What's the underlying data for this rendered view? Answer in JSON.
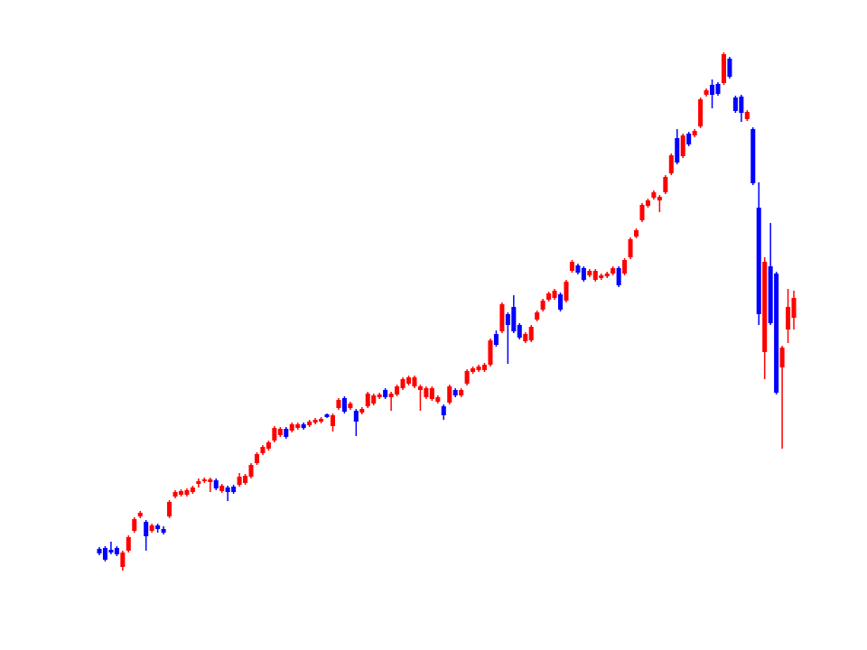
{
  "chart_data": {
    "type": "candlestick",
    "up_color": "#ff0000",
    "down_color": "#0000ff",
    "ylim": [
      0,
      720
    ],
    "candles": [
      [
        112,
        114,
        105,
        107
      ],
      [
        113,
        115,
        98,
        100
      ],
      [
        111,
        120,
        106,
        108
      ],
      [
        113,
        115,
        104,
        106
      ],
      [
        92,
        110,
        88,
        108
      ],
      [
        110,
        127,
        108,
        125
      ],
      [
        132,
        147,
        130,
        145
      ],
      [
        148,
        154,
        146,
        152
      ],
      [
        142,
        144,
        110,
        126
      ],
      [
        132,
        140,
        130,
        138
      ],
      [
        138,
        140,
        130,
        134
      ],
      [
        134,
        137,
        128,
        130
      ],
      [
        148,
        166,
        146,
        164
      ],
      [
        170,
        177,
        168,
        175
      ],
      [
        172,
        178,
        170,
        176
      ],
      [
        172,
        179,
        170,
        177
      ],
      [
        175,
        182,
        173,
        180
      ],
      [
        184,
        190,
        180,
        187
      ],
      [
        187,
        191,
        185,
        189
      ],
      [
        186,
        191,
        175,
        189
      ],
      [
        188,
        190,
        177,
        179
      ],
      [
        176,
        184,
        174,
        182
      ],
      [
        180,
        182,
        165,
        175
      ],
      [
        181,
        183,
        173,
        175
      ],
      [
        183,
        196,
        181,
        192
      ],
      [
        185,
        195,
        183,
        193
      ],
      [
        192,
        207,
        190,
        205
      ],
      [
        207,
        219,
        205,
        217
      ],
      [
        218,
        227,
        216,
        225
      ],
      [
        223,
        232,
        221,
        230
      ],
      [
        232,
        248,
        230,
        246
      ],
      [
        238,
        247,
        236,
        245
      ],
      [
        245,
        247,
        234,
        236
      ],
      [
        243,
        252,
        241,
        250
      ],
      [
        246,
        252,
        244,
        250
      ],
      [
        250,
        252,
        244,
        246
      ],
      [
        249,
        255,
        247,
        253
      ],
      [
        252,
        257,
        250,
        255
      ],
      [
        253,
        258,
        251,
        256
      ],
      [
        261,
        262,
        257,
        258
      ],
      [
        248,
        262,
        242,
        260
      ],
      [
        268,
        279,
        266,
        277
      ],
      [
        279,
        281,
        262,
        264
      ],
      [
        268,
        275,
        266,
        273
      ],
      [
        265,
        267,
        237,
        253
      ],
      [
        263,
        269,
        261,
        267
      ],
      [
        270,
        286,
        268,
        284
      ],
      [
        273,
        284,
        271,
        282
      ],
      [
        280,
        285,
        278,
        283
      ],
      [
        288,
        290,
        278,
        280
      ],
      [
        280,
        286,
        265,
        284
      ],
      [
        283,
        294,
        281,
        292
      ],
      [
        290,
        302,
        288,
        300
      ],
      [
        295,
        304,
        293,
        302
      ],
      [
        292,
        304,
        290,
        302
      ],
      [
        288,
        294,
        265,
        292
      ],
      [
        280,
        292,
        278,
        290
      ],
      [
        278,
        292,
        276,
        290
      ],
      [
        275,
        282,
        273,
        280
      ],
      [
        270,
        272,
        255,
        260
      ],
      [
        274,
        294,
        272,
        292
      ],
      [
        288,
        290,
        280,
        282
      ],
      [
        282,
        290,
        280,
        288
      ],
      [
        295,
        311,
        293,
        309
      ],
      [
        308,
        314,
        306,
        312
      ],
      [
        310,
        316,
        308,
        314
      ],
      [
        310,
        318,
        308,
        316
      ],
      [
        316,
        345,
        314,
        343
      ],
      [
        350,
        354,
        336,
        338
      ],
      [
        353,
        385,
        351,
        383
      ],
      [
        372,
        374,
        317,
        360
      ],
      [
        380,
        393,
        351,
        353
      ],
      [
        360,
        362,
        344,
        346
      ],
      [
        342,
        352,
        340,
        350
      ],
      [
        343,
        360,
        341,
        358
      ],
      [
        366,
        376,
        364,
        374
      ],
      [
        377,
        389,
        375,
        387
      ],
      [
        388,
        397,
        386,
        395
      ],
      [
        390,
        400,
        388,
        398
      ],
      [
        394,
        396,
        375,
        377
      ],
      [
        387,
        410,
        385,
        408
      ],
      [
        420,
        432,
        418,
        430
      ],
      [
        426,
        428,
        416,
        418
      ],
      [
        423,
        425,
        408,
        410
      ],
      [
        415,
        422,
        413,
        420
      ],
      [
        410,
        422,
        408,
        420
      ],
      [
        412,
        417,
        410,
        415
      ],
      [
        414,
        419,
        412,
        417
      ],
      [
        417,
        425,
        415,
        423
      ],
      [
        423,
        425,
        402,
        404
      ],
      [
        417,
        434,
        415,
        432
      ],
      [
        435,
        457,
        433,
        455
      ],
      [
        458,
        467,
        456,
        465
      ],
      [
        476,
        495,
        474,
        493
      ],
      [
        492,
        500,
        490,
        498
      ],
      [
        501,
        509,
        499,
        507
      ],
      [
        498,
        504,
        485,
        502
      ],
      [
        507,
        526,
        505,
        524
      ],
      [
        528,
        550,
        526,
        548
      ],
      [
        567,
        577,
        538,
        540
      ],
      [
        547,
        572,
        545,
        570
      ],
      [
        572,
        574,
        558,
        560
      ],
      [
        570,
        577,
        568,
        575
      ],
      [
        580,
        612,
        578,
        610
      ],
      [
        615,
        622,
        613,
        620
      ],
      [
        626,
        632,
        600,
        615
      ],
      [
        627,
        629,
        614,
        616
      ],
      [
        628,
        662,
        626,
        660
      ],
      [
        655,
        657,
        633,
        635
      ],
      [
        612,
        614,
        595,
        597
      ],
      [
        613,
        615,
        585,
        595
      ],
      [
        588,
        598,
        586,
        596
      ],
      [
        577,
        579,
        515,
        517
      ],
      [
        490,
        518,
        360,
        372
      ],
      [
        330,
        435,
        300,
        430
      ],
      [
        425,
        473,
        360,
        362
      ],
      [
        417,
        419,
        283,
        285
      ],
      [
        313,
        337,
        223,
        335
      ],
      [
        355,
        400,
        340,
        380
      ],
      [
        368,
        398,
        355,
        390
      ]
    ]
  }
}
